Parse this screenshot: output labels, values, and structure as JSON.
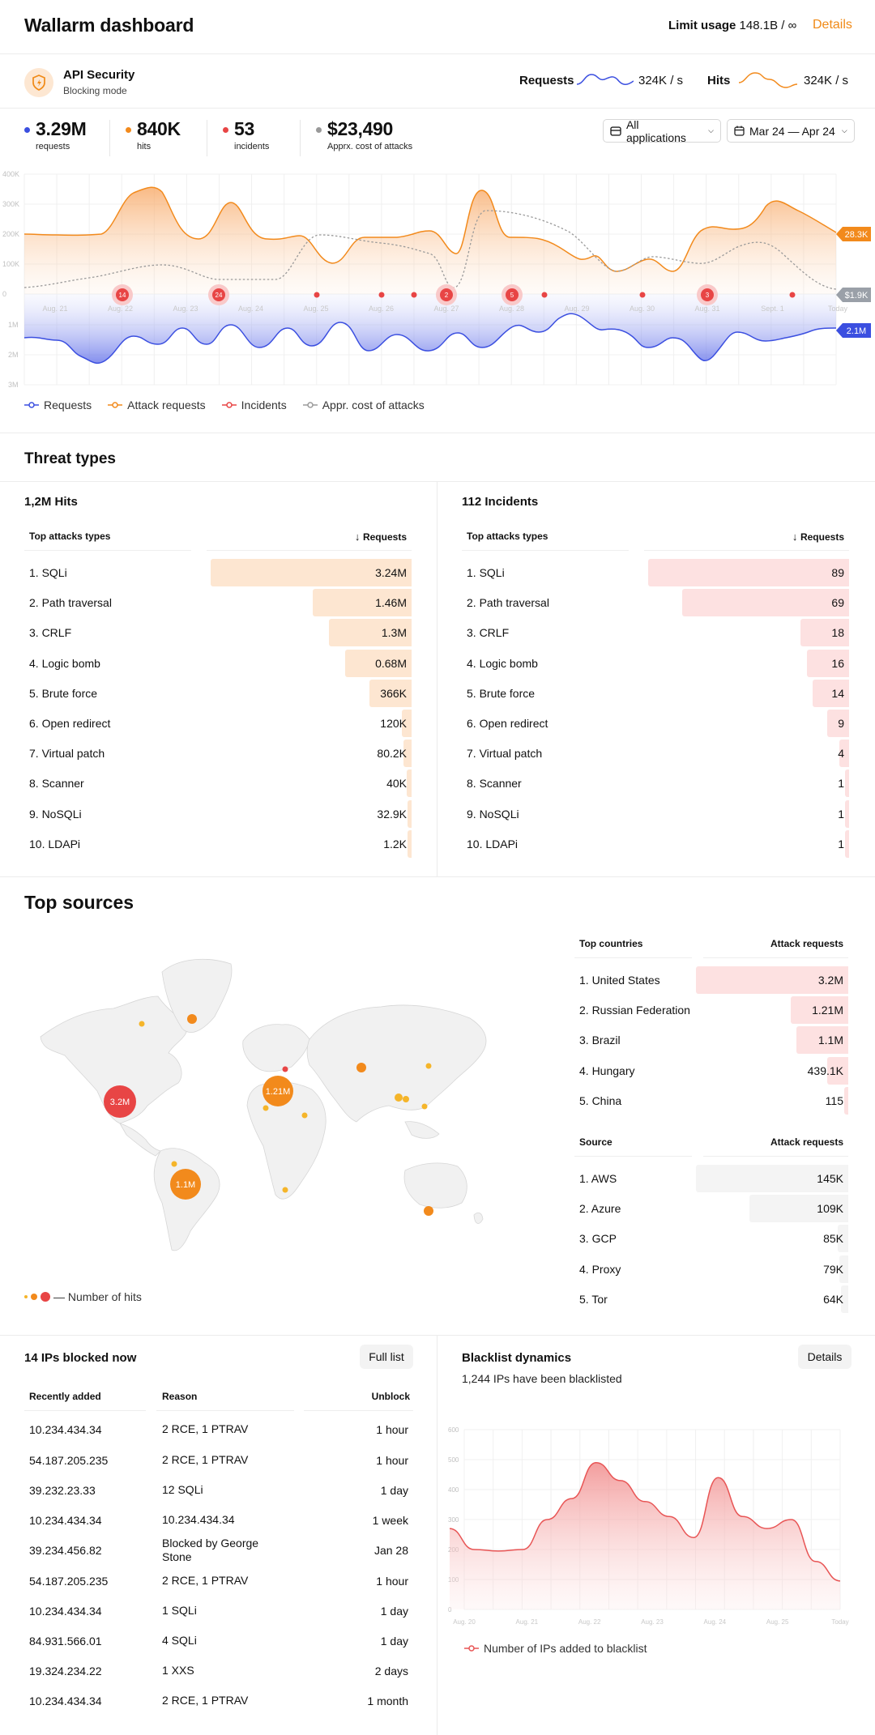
{
  "header": {
    "title": "Wallarm dashboard",
    "limit_label": "Limit usage",
    "limit_value": "148.1B / ∞",
    "details_link": "Details"
  },
  "product": {
    "name": "API Security",
    "mode": "Blocking mode",
    "requests_label": "Requests",
    "requests_rate": "324K / s",
    "hits_label": "Hits",
    "hits_rate": "324K / s"
  },
  "stats": [
    {
      "value": "3.29M",
      "label": "requests",
      "color": "#3b4fe0"
    },
    {
      "value": "840K",
      "label": "hits",
      "color": "#f28a1c"
    },
    {
      "value": "53",
      "label": "incidents",
      "color": "#e84545"
    },
    {
      "value": "$23,490",
      "label": "Apprx. cost of attacks",
      "color": "#999999"
    }
  ],
  "filters": {
    "applications": "All applications",
    "date_range": "Mar 24 — Apr 24"
  },
  "main_chart": {
    "y_top": [
      "400K",
      "300K",
      "200K",
      "100K",
      "0"
    ],
    "y_bottom": [
      "1M",
      "2M",
      "3M"
    ],
    "x": [
      "Aug. 21",
      "Aug. 22",
      "Aug. 23",
      "Aug. 24",
      "Aug. 25",
      "Aug. 26",
      "Aug. 27",
      "Aug. 28",
      "Aug. 29",
      "Aug. 30",
      "Aug. 31",
      "Sept. 1",
      "Today"
    ],
    "incident_badges": [
      "14",
      "24",
      "2",
      "5",
      "3"
    ],
    "end_labels": {
      "attack": "28.3K",
      "cost": "$1.9K",
      "requests": "2.1M"
    },
    "legend": [
      "Requests",
      "Attack requests",
      "Incidents",
      "Appr. cost of attacks"
    ]
  },
  "threats": {
    "title": "Threat types",
    "hits": {
      "title": "1,2M Hits",
      "col1": "Top attacks types",
      "col2": "Requests",
      "rows": [
        {
          "name": "1. SQLi",
          "value": "3.24M",
          "share": 1.0
        },
        {
          "name": "2. Path traversal",
          "value": "1.46M",
          "share": 0.49
        },
        {
          "name": "3. CRLF",
          "value": "1.3M",
          "share": 0.41
        },
        {
          "name": "4. Logic bomb",
          "value": "0.68M",
          "share": 0.33
        },
        {
          "name": "5. Brute force",
          "value": "366K",
          "share": 0.21
        },
        {
          "name": "6. Open redirect",
          "value": "120K",
          "share": 0.05
        },
        {
          "name": "7. Virtual patch",
          "value": "80.2K",
          "share": 0.04
        },
        {
          "name": "8. Scanner",
          "value": "40K",
          "share": 0.025
        },
        {
          "name": "9. NoSQLi",
          "value": "32.9K",
          "share": 0.02
        },
        {
          "name": "10. LDAPi",
          "value": "1.2K",
          "share": 0.015
        }
      ]
    },
    "incidents": {
      "title": "112 Incidents",
      "col1": "Top attacks types",
      "col2": "Requests",
      "rows": [
        {
          "name": "1. SQLi",
          "value": "89",
          "share": 1.0
        },
        {
          "name": "2. Path traversal",
          "value": "69",
          "share": 0.83
        },
        {
          "name": "3. CRLF",
          "value": "18",
          "share": 0.24
        },
        {
          "name": "4. Logic bomb",
          "value": "16",
          "share": 0.21
        },
        {
          "name": "5. Brute force",
          "value": "14",
          "share": 0.18
        },
        {
          "name": "6. Open redirect",
          "value": "9",
          "share": 0.11
        },
        {
          "name": "7. Virtual patch",
          "value": "4",
          "share": 0.05
        },
        {
          "name": "8. Scanner",
          "value": "1",
          "share": 0.02
        },
        {
          "name": "9. NoSQLi",
          "value": "1",
          "share": 0.02
        },
        {
          "name": "10. LDAPi",
          "value": "1",
          "share": 0.02
        }
      ]
    }
  },
  "sources": {
    "title": "Top sources",
    "map_bubbles": [
      "3.2M",
      "1.21M",
      "1.1M"
    ],
    "map_legend": "— Number of hits",
    "countries": {
      "col1": "Top countries",
      "col2": "Attack requests",
      "rows": [
        {
          "name": "1. United States",
          "value": "3.2M",
          "share": 1.0
        },
        {
          "name": "2. Russian Federation",
          "value": "1.21M",
          "share": 0.38
        },
        {
          "name": "3. Brazil",
          "value": "1.1M",
          "share": 0.34
        },
        {
          "name": "4. Hungary",
          "value": "439.1K",
          "share": 0.14
        },
        {
          "name": "5. China",
          "value": "115",
          "share": 0.02
        }
      ]
    },
    "providers": {
      "col1": "Source",
      "col2": "Attack requests",
      "rows": [
        {
          "name": "1. AWS",
          "value": "145K",
          "share": 1.0
        },
        {
          "name": "2. Azure",
          "value": "109K",
          "share": 0.65
        },
        {
          "name": "3. GCP",
          "value": "85K",
          "share": 0.07
        },
        {
          "name": "4. Proxy",
          "value": "79K",
          "share": 0.06
        },
        {
          "name": "5. Tor",
          "value": "64K",
          "share": 0.05
        }
      ]
    }
  },
  "blocked": {
    "title": "14 IPs blocked now",
    "button": "Full list",
    "cols": [
      "Recently added",
      "Reason",
      "Unblock"
    ],
    "rows": [
      {
        "ip": "10.234.434.34",
        "reason": "2 RCE, 1 PTRAV",
        "unblock": "1 hour"
      },
      {
        "ip": "54.187.205.235",
        "reason": "2 RCE, 1 PTRAV",
        "unblock": "1 hour"
      },
      {
        "ip": "39.232.23.33",
        "reason": "12 SQLi",
        "unblock": "1 day"
      },
      {
        "ip": "10.234.434.34",
        "reason": "10.234.434.34",
        "unblock": "1 week"
      },
      {
        "ip": "39.234.456.82",
        "reason": "Blocked by George Stone",
        "unblock": "Jan 28"
      },
      {
        "ip": "54.187.205.235",
        "reason": "2 RCE, 1 PTRAV",
        "unblock": "1 hour"
      },
      {
        "ip": "10.234.434.34",
        "reason": "1 SQLi",
        "unblock": "1 day"
      },
      {
        "ip": "84.931.566.01",
        "reason": "4 SQLi",
        "unblock": "1 day"
      },
      {
        "ip": "19.324.234.22",
        "reason": "1 XXS",
        "unblock": "2 days"
      },
      {
        "ip": "10.234.434.34",
        "reason": "2 RCE, 1 PTRAV",
        "unblock": "1 month"
      }
    ]
  },
  "blacklist": {
    "title": "Blacklist dynamics",
    "button": "Details",
    "subtitle": "1,244 IPs have been blacklisted",
    "legend": "Number of IPs added to blacklist",
    "chart_data": {
      "type": "area",
      "y_ticks": [
        "600",
        "500",
        "400",
        "300",
        "200",
        "100",
        "0"
      ],
      "ylim": [
        0,
        600
      ],
      "x_ticks": [
        "Aug. 20",
        "Aug. 21",
        "Aug. 22",
        "Aug. 23",
        "Aug. 24",
        "Aug. 25",
        "Today"
      ],
      "series": [
        {
          "values": [
            270,
            200,
            195,
            200,
            300,
            370,
            490,
            430,
            360,
            310,
            240,
            440,
            310,
            270,
            300,
            160,
            95
          ]
        }
      ],
      "color": "#e85555"
    }
  }
}
